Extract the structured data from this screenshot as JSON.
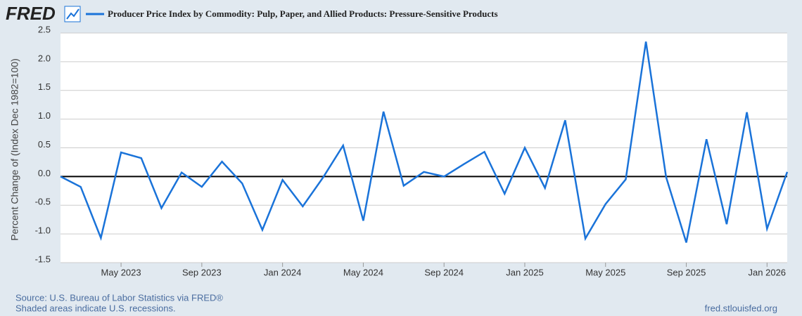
{
  "logo": "FRED",
  "chart_data": {
    "type": "line",
    "title": "Producer Price Index by Commodity: Pulp, Paper, and Allied Products: Pressure-Sensitive Products",
    "y_label": "Percent Change of (Index Dec 1982=100)",
    "x": [
      "2023-02",
      "2023-03",
      "2023-04",
      "2023-05",
      "2023-06",
      "2023-07",
      "2023-08",
      "2023-09",
      "2023-10",
      "2023-11",
      "2023-12",
      "2024-01",
      "2024-02",
      "2024-03",
      "2024-04",
      "2024-05",
      "2024-06",
      "2024-07",
      "2024-08",
      "2024-09",
      "2024-10",
      "2024-11",
      "2024-12",
      "2025-01",
      "2025-02",
      "2025-03",
      "2025-04",
      "2025-05",
      "2025-06",
      "2025-07",
      "2025-08",
      "2025-09",
      "2025-10",
      "2025-11",
      "2025-12",
      "2026-01",
      "2026-02"
    ],
    "series": [
      {
        "name": "Producer Price Index by Commodity: Pulp, Paper, and Allied Products: Pressure-Sensitive Products",
        "color": "#1a73d9",
        "values": [
          0.0,
          -0.18,
          -1.07,
          0.42,
          0.32,
          -0.55,
          0.07,
          -0.18,
          0.26,
          -0.12,
          -0.93,
          -0.06,
          -0.52,
          -0.02,
          0.54,
          -0.77,
          1.13,
          -0.16,
          0.08,
          0.0,
          0.22,
          0.43,
          -0.3,
          0.5,
          -0.2,
          0.98,
          -1.08,
          -0.48,
          -0.05,
          2.35,
          -0.01,
          -1.15,
          0.65,
          -0.83,
          1.12,
          -0.91,
          0.08
        ]
      }
    ],
    "xlim": [
      "2023-02",
      "2026-02"
    ],
    "xticks": [
      {
        "value": "2023-05",
        "label": "May 2023"
      },
      {
        "value": "2023-09",
        "label": "Sep 2023"
      },
      {
        "value": "2024-01",
        "label": "Jan 2024"
      },
      {
        "value": "2024-05",
        "label": "May 2024"
      },
      {
        "value": "2024-09",
        "label": "Sep 2024"
      },
      {
        "value": "2025-01",
        "label": "Jan 2025"
      },
      {
        "value": "2025-05",
        "label": "May 2025"
      },
      {
        "value": "2025-09",
        "label": "Sep 2025"
      },
      {
        "value": "2026-01",
        "label": "Jan 2026"
      }
    ],
    "ylim": [
      -1.5,
      2.5
    ],
    "yticks": [
      2.5,
      {
        "value": 2,
        "label": "2.0"
      },
      1.5,
      {
        "value": 1,
        "label": "1.0"
      },
      0.5,
      {
        "value": 0,
        "label": "0.0"
      },
      -0.5,
      {
        "value": -1,
        "label": "-1.0"
      },
      -1.5
    ],
    "grid": true,
    "zero_line": true
  },
  "footer": {
    "source": "Source: U.S. Bureau of Labor Statistics via FRED®",
    "note": "Shaded areas indicate U.S. recessions.",
    "site": "fred.stlouisfed.org"
  }
}
